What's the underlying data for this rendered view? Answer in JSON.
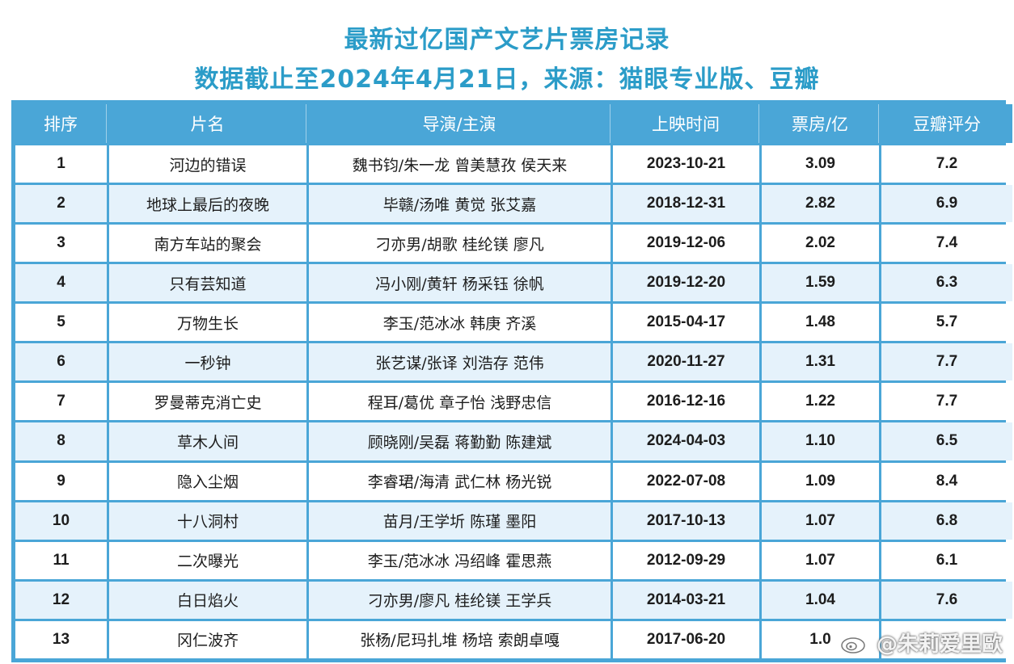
{
  "title": "最新过亿国产文艺片票房记录",
  "subtitle": "数据截止至2024年4月21日，来源：猫眼专业版、豆瓣",
  "table": {
    "headers": [
      "排序",
      "片名",
      "导演/主演",
      "上映时间",
      "票房/亿",
      "豆瓣评分"
    ],
    "rows": [
      {
        "rank": "1",
        "title": "河边的错误",
        "cast": "魏书钧/朱一龙 曾美慧孜 侯天来",
        "date": "2023-10-21",
        "box": "3.09",
        "score": "7.2"
      },
      {
        "rank": "2",
        "title": "地球上最后的夜晚",
        "cast": "毕赣/汤唯 黄觉 张艾嘉",
        "date": "2018-12-31",
        "box": "2.82",
        "score": "6.9"
      },
      {
        "rank": "3",
        "title": "南方车站的聚会",
        "cast": "刁亦男/胡歌 桂纶镁 廖凡",
        "date": "2019-12-06",
        "box": "2.02",
        "score": "7.4"
      },
      {
        "rank": "4",
        "title": "只有芸知道",
        "cast": "冯小刚/黄轩 杨采钰 徐帆",
        "date": "2019-12-20",
        "box": "1.59",
        "score": "6.3"
      },
      {
        "rank": "5",
        "title": "万物生长",
        "cast": "李玉/范冰冰 韩庚 齐溪",
        "date": "2015-04-17",
        "box": "1.48",
        "score": "5.7"
      },
      {
        "rank": "6",
        "title": "一秒钟",
        "cast": "张艺谋/张译 刘浩存 范伟",
        "date": "2020-11-27",
        "box": "1.31",
        "score": "7.7"
      },
      {
        "rank": "7",
        "title": "罗曼蒂克消亡史",
        "cast": "程耳/葛优 章子怡 浅野忠信",
        "date": "2016-12-16",
        "box": "1.22",
        "score": "7.7"
      },
      {
        "rank": "8",
        "title": "草木人间",
        "cast": "顾晓刚/吴磊 蒋勤勤 陈建斌",
        "date": "2024-04-03",
        "box": "1.10",
        "score": "6.5"
      },
      {
        "rank": "9",
        "title": "隐入尘烟",
        "cast": "李睿珺/海清 武仁林 杨光锐",
        "date": "2022-07-08",
        "box": "1.09",
        "score": "8.4"
      },
      {
        "rank": "10",
        "title": "十八洞村",
        "cast": "苗月/王学圻 陈瑾 墨阳",
        "date": "2017-10-13",
        "box": "1.07",
        "score": "6.8"
      },
      {
        "rank": "11",
        "title": "二次曝光",
        "cast": "李玉/范冰冰 冯绍峰 霍思燕",
        "date": "2012-09-29",
        "box": "1.07",
        "score": "6.1"
      },
      {
        "rank": "12",
        "title": "白日焰火",
        "cast": "刁亦男/廖凡 桂纶镁 王学兵",
        "date": "2014-03-21",
        "box": "1.04",
        "score": "7.6"
      },
      {
        "rank": "13",
        "title": "冈仁波齐",
        "cast": "张杨/尼玛扎堆 杨培 索朗卓嘎",
        "date": "2017-06-20",
        "box": "1.0",
        "score": ""
      }
    ]
  },
  "watermark": {
    "text": "@朱莉爱里歐",
    "icon": "weibo-icon"
  },
  "colors": {
    "title": "#2b9cc8",
    "header_bg": "#4aa6d7",
    "row_alt_bg": "#e5f2fb"
  }
}
